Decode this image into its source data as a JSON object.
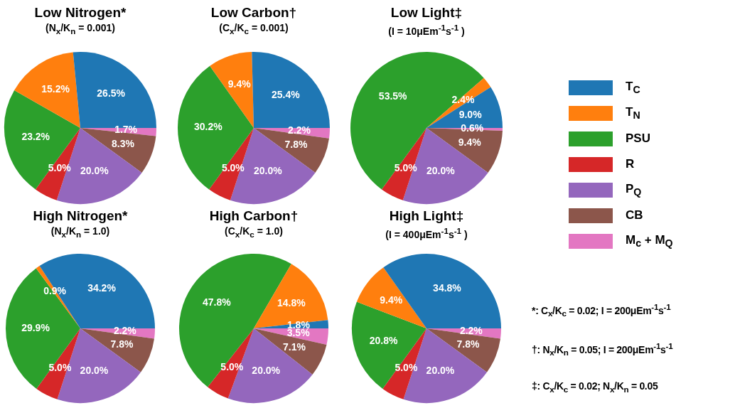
{
  "chart_data": [
    {
      "type": "pie",
      "title": "Low Nitrogen*",
      "subtitle": "(N$_{x}$/K$_{n}$ = 0.001)",
      "legend": "right",
      "categories": [
        "T$_{C}$",
        "T$_{N}$",
        "PSU",
        "R",
        "P$_{Q}$",
        "CB",
        "M$_{c}$ + M$_{Q}$"
      ],
      "colors": [
        "#1f77b4",
        "#ff7f0e",
        "#2ca02c",
        "#d62728",
        "#9467bd",
        "#8c564b",
        "#e377c2"
      ],
      "values": [
        26.5,
        15.2,
        23.2,
        5.0,
        20.0,
        8.3,
        1.7
      ],
      "value_labels": [
        "26.5%",
        "15.2%",
        "23.2%",
        "5.0%",
        "20.0%",
        "8.3%",
        "1.7%"
      ]
    },
    {
      "type": "pie",
      "title": "Low Carbon†",
      "subtitle": "(C$_{x}$/K$_{c}$ = 0.001)",
      "colors": [
        "#1f77b4",
        "#ff7f0e",
        "#2ca02c",
        "#d62728",
        "#9467bd",
        "#8c564b",
        "#e377c2"
      ],
      "values": [
        25.4,
        9.4,
        30.2,
        5.0,
        20.0,
        7.8,
        2.2
      ],
      "value_labels": [
        "25.4%",
        "9.4%",
        "30.2%",
        "5.0%",
        "20.0%",
        "7.8%",
        "2.2%"
      ]
    },
    {
      "type": "pie",
      "title": "Low Light‡",
      "subtitle": "(I = 10μEm$^{-1}$s$^{-1}$ )",
      "colors": [
        "#1f77b4",
        "#ff7f0e",
        "#2ca02c",
        "#d62728",
        "#9467bd",
        "#8c564b",
        "#e377c2"
      ],
      "values": [
        9.0,
        2.4,
        53.5,
        5.0,
        20.0,
        9.4,
        0.6
      ],
      "value_labels": [
        "9.0%",
        "2.4%",
        "53.5%",
        "5.0%",
        "20.0%",
        "9.4%",
        "0.6%"
      ]
    },
    {
      "type": "pie",
      "title": "High Nitrogen*",
      "subtitle": "(N$_{x}$/K$_{n}$ = 1.0)",
      "colors": [
        "#1f77b4",
        "#ff7f0e",
        "#2ca02c",
        "#d62728",
        "#9467bd",
        "#8c564b",
        "#e377c2"
      ],
      "values": [
        34.2,
        0.9,
        29.9,
        5.0,
        20.0,
        7.8,
        2.2
      ],
      "value_labels": [
        "34.2%",
        "0.9%",
        "29.9%",
        "5.0%",
        "20.0%",
        "7.8%",
        "2.2%"
      ]
    },
    {
      "type": "pie",
      "title": "High Carbon†",
      "subtitle": "(C$_{x}$/K$_{c}$ = 1.0)",
      "colors": [
        "#1f77b4",
        "#ff7f0e",
        "#2ca02c",
        "#d62728",
        "#9467bd",
        "#8c564b",
        "#e377c2"
      ],
      "values": [
        1.8,
        14.8,
        47.8,
        5.0,
        20.0,
        7.1,
        3.5
      ],
      "value_labels": [
        "1.8%",
        "14.8%",
        "47.8%",
        "5.0%",
        "20.0%",
        "7.1%",
        "3.5%"
      ]
    },
    {
      "type": "pie",
      "title": "High Light‡",
      "subtitle": "(I = 400μEm$^{-1}$s$^{-1}$ )",
      "colors": [
        "#1f77b4",
        "#ff7f0e",
        "#2ca02c",
        "#d62728",
        "#9467bd",
        "#8c564b",
        "#e377c2"
      ],
      "values": [
        34.8,
        9.4,
        20.8,
        5.0,
        20.0,
        7.8,
        2.2
      ],
      "value_labels": [
        "34.8%",
        "9.4%",
        "20.8%",
        "5.0%",
        "20.0%",
        "7.8%",
        "2.2%"
      ]
    },
    {
      "type": "other",
      "annotations": [
        "*: C$_{x}$/K$_{c}$ = 0.02; I = 200μEm$^{-1}$s$^{-1}$",
        "†: N$_{x}$/K$_{n}$ = 0.05; I = 200μEm$^{-1}$s$^{-1}$",
        "‡: C$_{x}$/K$_{c}$ = 0.02; N$_{x}$/K$_{n}$ = 0.05"
      ]
    }
  ]
}
